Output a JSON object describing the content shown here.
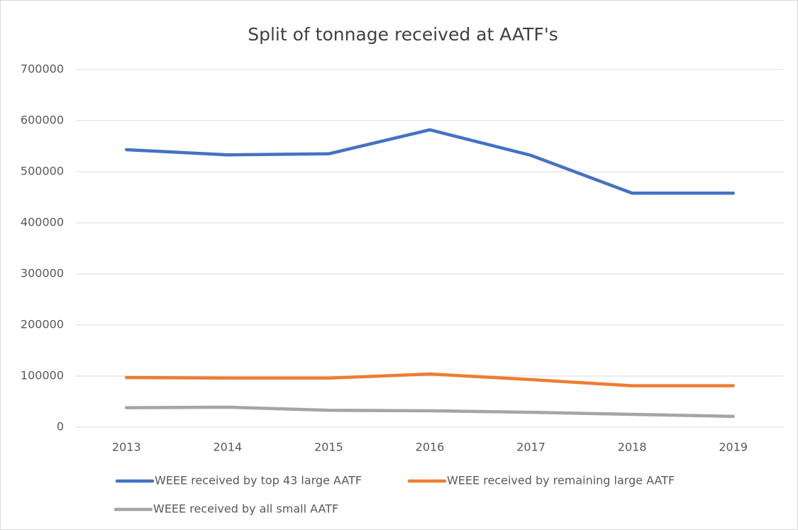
{
  "chart_data": {
    "type": "line",
    "title": "Split of tonnage received at AATF's",
    "categories": [
      "2013",
      "2014",
      "2015",
      "2016",
      "2017",
      "2018",
      "2019"
    ],
    "series": [
      {
        "name": "WEEE received by top 43 large AATF",
        "color": "#4472c4",
        "values": [
          543000,
          533000,
          535000,
          582000,
          532000,
          458000,
          458000
        ]
      },
      {
        "name": "WEEE received by remaining large AATF",
        "color": "#ed7d31",
        "values": [
          97000,
          96000,
          96000,
          104000,
          93000,
          81000,
          81000
        ]
      },
      {
        "name": "WEEE received by all small AATF",
        "color": "#a5a5a5",
        "values": [
          38000,
          39000,
          33000,
          32000,
          29000,
          25000,
          21000
        ]
      }
    ],
    "ylim": [
      0,
      700000
    ],
    "yticks": [
      0,
      100000,
      200000,
      300000,
      400000,
      500000,
      600000,
      700000
    ],
    "grid": true,
    "legend": "bottom"
  }
}
